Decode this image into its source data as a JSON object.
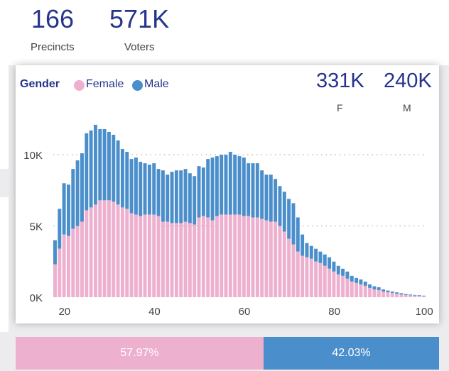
{
  "kpis": {
    "precincts_value": "166",
    "precincts_label": "Precincts",
    "voters_value": "571K",
    "voters_label": "Voters"
  },
  "legend": {
    "title": "Gender",
    "female_label": "Female",
    "male_label": "Male"
  },
  "stats": {
    "female_value": "331K",
    "female_label": "F",
    "male_value": "240K",
    "male_label": "M"
  },
  "ratio": {
    "female_pct": "57.97%",
    "male_pct": "42.03%",
    "female_share": 0.5797
  },
  "colors": {
    "female": "#eeb0cf",
    "male": "#4a8ecb",
    "title": "#26348c"
  },
  "chart_data": {
    "type": "bar",
    "stacked": true,
    "x": [
      18,
      19,
      20,
      21,
      22,
      23,
      24,
      25,
      26,
      27,
      28,
      29,
      30,
      31,
      32,
      33,
      34,
      35,
      36,
      37,
      38,
      39,
      40,
      41,
      42,
      43,
      44,
      45,
      46,
      47,
      48,
      49,
      50,
      51,
      52,
      53,
      54,
      55,
      56,
      57,
      58,
      59,
      60,
      61,
      62,
      63,
      64,
      65,
      66,
      67,
      68,
      69,
      70,
      71,
      72,
      73,
      74,
      75,
      76,
      77,
      78,
      79,
      80,
      81,
      82,
      83,
      84,
      85,
      86,
      87,
      88,
      89,
      90,
      91,
      92,
      93,
      94,
      95,
      96,
      97,
      98,
      99,
      100
    ],
    "series": [
      {
        "name": "Female",
        "values": [
          2300,
          3400,
          4400,
          4300,
          4800,
          5000,
          5300,
          6100,
          6300,
          6500,
          6800,
          6800,
          6800,
          6700,
          6500,
          6300,
          6200,
          5900,
          5800,
          5700,
          5800,
          5800,
          5800,
          5700,
          5300,
          5300,
          5200,
          5200,
          5200,
          5300,
          5200,
          5100,
          5600,
          5700,
          5600,
          5400,
          5700,
          5800,
          5800,
          5800,
          5800,
          5800,
          5700,
          5700,
          5600,
          5600,
          5500,
          5400,
          5300,
          5300,
          5000,
          4600,
          4100,
          3700,
          3200,
          2900,
          2800,
          2700,
          2500,
          2400,
          2200,
          2000,
          1800,
          1600,
          1500,
          1300,
          1100,
          1000,
          900,
          800,
          650,
          550,
          500,
          400,
          350,
          300,
          250,
          200,
          150,
          130,
          110,
          100,
          80
        ]
      },
      {
        "name": "Male",
        "values": [
          1700,
          2800,
          3600,
          3600,
          4200,
          4600,
          4800,
          5400,
          5400,
          5600,
          5000,
          5000,
          4800,
          4700,
          4500,
          4100,
          4000,
          3800,
          4000,
          3800,
          3600,
          3500,
          3600,
          3300,
          3600,
          3300,
          3600,
          3700,
          3700,
          3700,
          3500,
          3400,
          3600,
          3400,
          4100,
          4400,
          4200,
          4200,
          4200,
          4400,
          4200,
          4100,
          4100,
          3700,
          3800,
          3800,
          3400,
          3200,
          3300,
          3000,
          2800,
          2800,
          2800,
          2900,
          2400,
          1500,
          1000,
          900,
          900,
          800,
          800,
          800,
          700,
          600,
          500,
          500,
          400,
          350,
          350,
          300,
          250,
          220,
          200,
          150,
          120,
          100,
          90,
          80,
          70,
          60,
          50,
          40,
          30
        ]
      }
    ],
    "ylim": [
      0,
      11000
    ],
    "yticks": [
      0,
      5000,
      10000
    ],
    "ytick_labels": [
      "0K",
      "5K",
      "10K"
    ],
    "xticks": [
      20,
      40,
      60,
      80,
      100
    ],
    "grid": "horizontal-dotted",
    "legend_position": "top-left"
  }
}
